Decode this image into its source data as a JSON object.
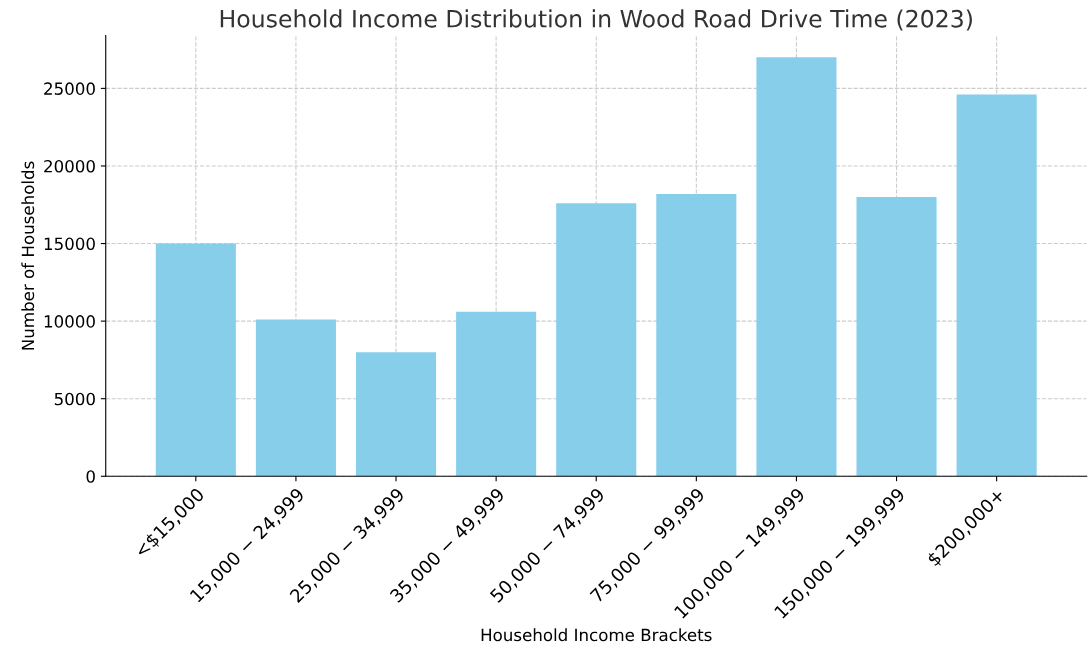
{
  "chart_data": {
    "type": "bar",
    "title": "Household Income Distribution in Wood Road Drive Time (2023)",
    "xlabel": "Household Income Brackets",
    "ylabel": "Number of Households",
    "categories": [
      "<$15,000",
      "15,000 − 24,999",
      "25,000 − 34,999",
      "35,000 − 49,999",
      "50,000 − 74,999",
      "75,000 − 99,999",
      "100,000 − 149,999",
      "150,000 − 199,999",
      "$200,000+"
    ],
    "values": [
      15000,
      10100,
      8000,
      10600,
      17600,
      18200,
      27000,
      18000,
      24600
    ],
    "color": "#87ceeb",
    "ylim": [
      0,
      28400
    ],
    "yticks": [
      0,
      5000,
      10000,
      15000,
      20000,
      25000
    ],
    "grid": true
  }
}
